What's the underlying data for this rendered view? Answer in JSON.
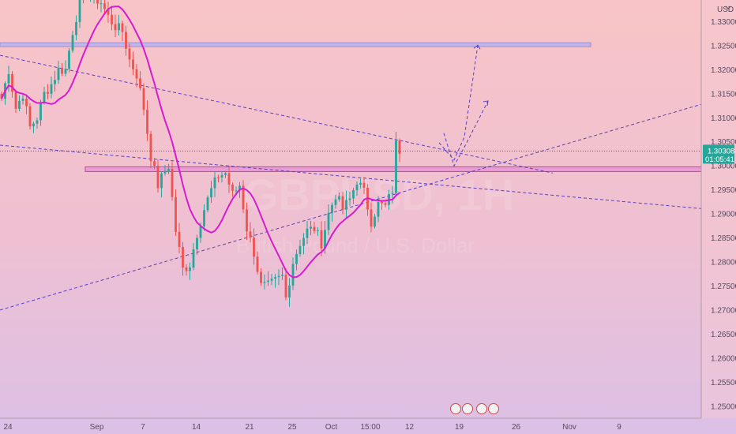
{
  "chart_data": {
    "type": "candlestick",
    "currency_label": "USD",
    "watermark": {
      "symbol": "GBPUSD, 1H",
      "name": "British Pound / U.S. Dollar"
    },
    "price_badge": {
      "price": "1.30308",
      "countdown": "01:05:41"
    },
    "y_ticks": [
      "1.33000",
      "1.32500",
      "1.32000",
      "1.31500",
      "1.31000",
      "1.30500",
      "1.30000",
      "1.29500",
      "1.29000",
      "1.28500",
      "1.28000",
      "1.27500",
      "1.27000",
      "1.26500",
      "1.26000",
      "1.25500",
      "1.25000"
    ],
    "y_tick_values": [
      1.33,
      1.325,
      1.32,
      1.315,
      1.31,
      1.305,
      1.3,
      1.295,
      1.29,
      1.285,
      1.28,
      1.275,
      1.27,
      1.265,
      1.26,
      1.255,
      1.25
    ],
    "ylim": [
      1.2475,
      1.3345
    ],
    "x_ticks": [
      "24",
      "Sep",
      "7",
      "14",
      "21",
      "25",
      "Oct",
      "15:00",
      "12",
      "19",
      "26",
      "Nov",
      "9"
    ],
    "x_tick_bars": [
      0,
      25,
      38,
      53,
      68,
      80,
      91,
      102,
      113,
      127,
      143,
      158,
      172
    ],
    "n_bars": 180,
    "anchors": [
      [
        0,
        1.314
      ],
      [
        2,
        1.32
      ],
      [
        4,
        1.312
      ],
      [
        6,
        1.315
      ],
      [
        8,
        1.308
      ],
      [
        10,
        1.31
      ],
      [
        12,
        1.315
      ],
      [
        14,
        1.317
      ],
      [
        16,
        1.32
      ],
      [
        18,
        1.32
      ],
      [
        20,
        1.328
      ],
      [
        22,
        1.334
      ],
      [
        24,
        1.3365
      ],
      [
        26,
        1.335
      ],
      [
        28,
        1.334
      ],
      [
        30,
        1.331
      ],
      [
        32,
        1.329
      ],
      [
        34,
        1.328
      ],
      [
        36,
        1.322
      ],
      [
        38,
        1.319
      ],
      [
        40,
        1.312
      ],
      [
        42,
        1.302
      ],
      [
        44,
        1.296
      ],
      [
        46,
        1.299
      ],
      [
        47,
        1.3
      ],
      [
        49,
        1.2865
      ],
      [
        51,
        1.2785
      ],
      [
        53,
        1.2795
      ],
      [
        55,
        1.286
      ],
      [
        57,
        1.291
      ],
      [
        59,
        1.295
      ],
      [
        61,
        1.298
      ],
      [
        63,
        1.2985
      ],
      [
        65,
        1.294
      ],
      [
        67,
        1.296
      ],
      [
        69,
        1.287
      ],
      [
        71,
        1.282
      ],
      [
        73,
        1.275
      ],
      [
        75,
        1.275
      ],
      [
        77,
        1.276
      ],
      [
        79,
        1.277
      ],
      [
        80,
        1.2725
      ],
      [
        82,
        1.28
      ],
      [
        84,
        1.284
      ],
      [
        86,
        1.2865
      ],
      [
        88,
        1.287
      ],
      [
        90,
        1.284
      ],
      [
        92,
        1.29
      ],
      [
        94,
        1.294
      ],
      [
        96,
        1.291
      ],
      [
        98,
        1.293
      ],
      [
        100,
        1.297
      ],
      [
        102,
        1.2945
      ],
      [
        104,
        1.2885
      ],
      [
        106,
        1.292
      ],
      [
        108,
        1.2915
      ],
      [
        110,
        1.295
      ],
      [
        111,
        1.3045
      ],
      [
        112,
        1.3033
      ]
    ],
    "highlighted_price_levels": [
      1.3252,
      1.2993
    ],
    "annotations": {
      "projected_targets": [
        1.3251,
        1.3135
      ]
    },
    "grid": false
  }
}
